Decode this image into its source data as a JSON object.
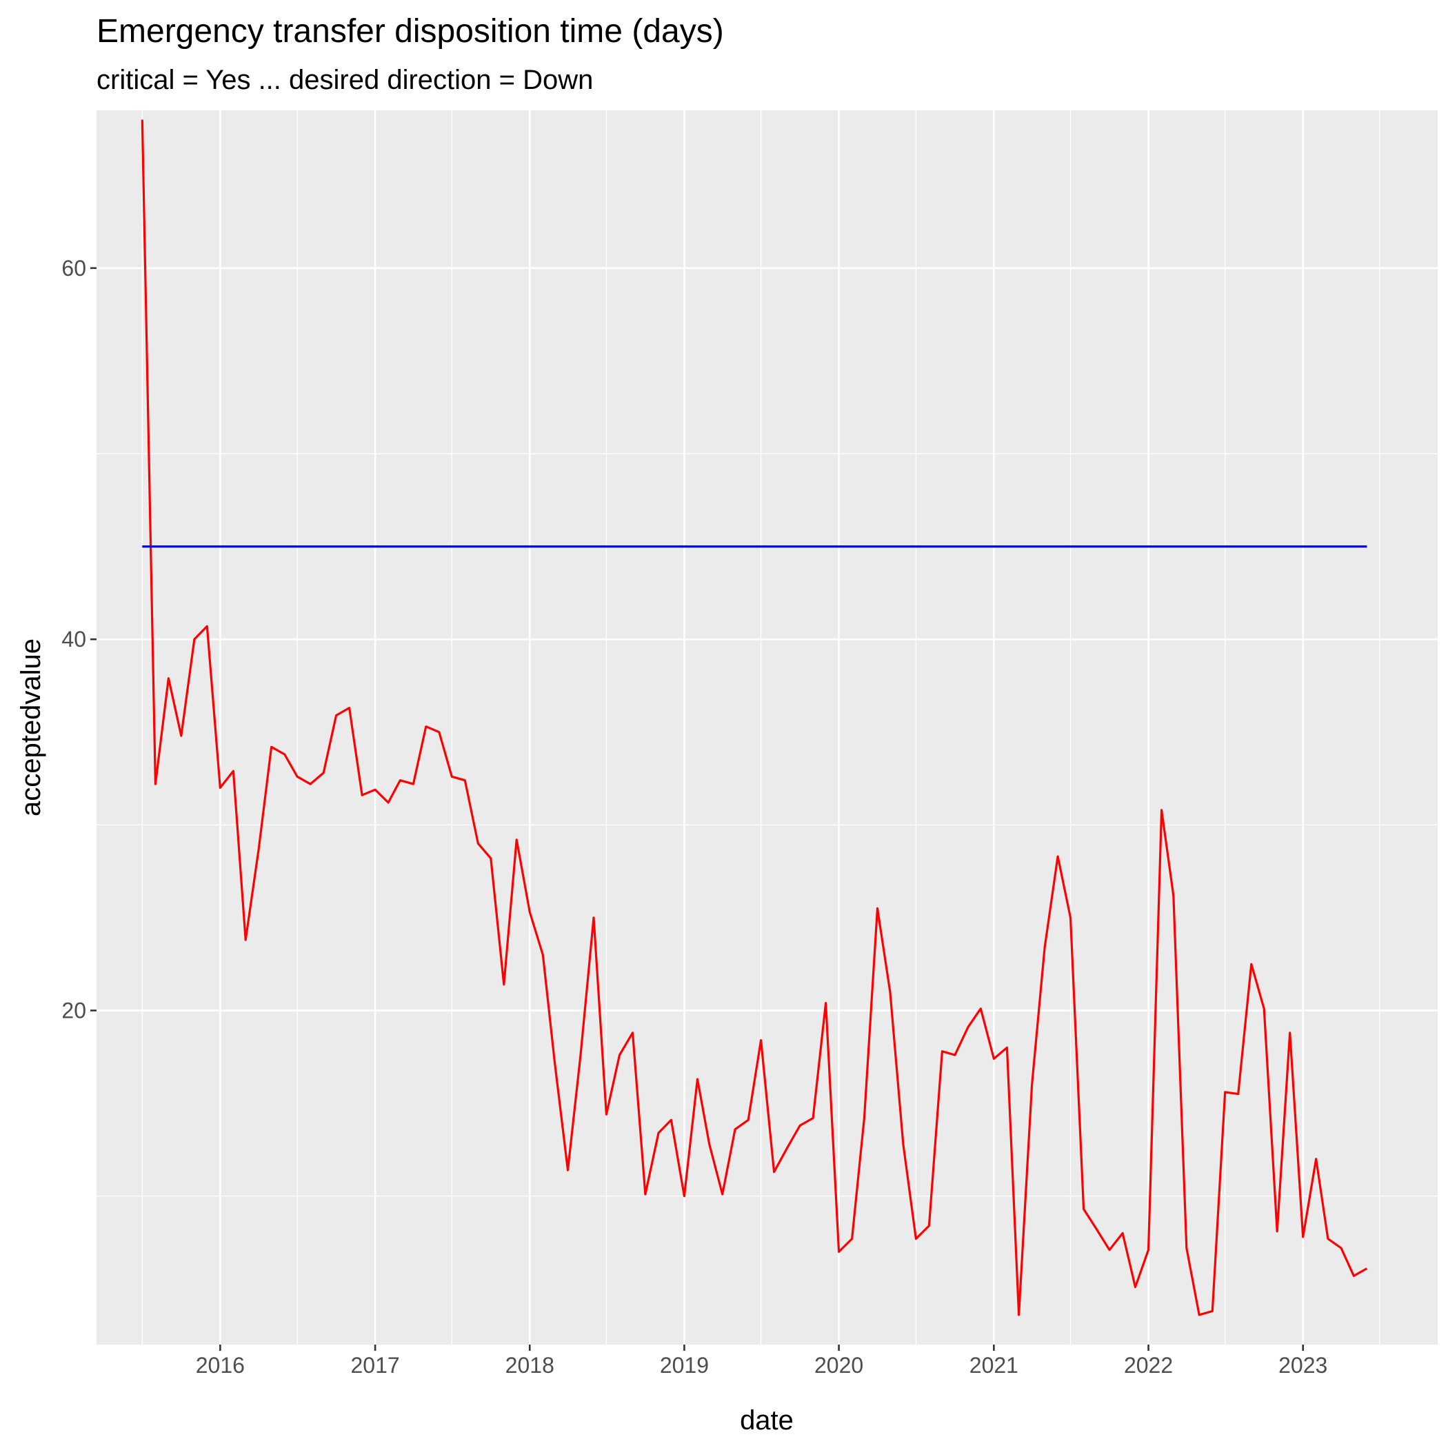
{
  "chart_data": {
    "type": "line",
    "title": "Emergency transfer disposition time (days)",
    "subtitle": "critical = Yes ... desired direction = Down",
    "xlabel": "date",
    "ylabel": "acceptedvalue",
    "xlim": [
      "2015-03-15",
      "2023-11-15"
    ],
    "ylim": [
      2,
      68.5
    ],
    "x_ticks": [
      "2016-01-01",
      "2017-01-01",
      "2018-01-01",
      "2019-01-01",
      "2020-01-01",
      "2021-01-01",
      "2022-01-01",
      "2023-01-01"
    ],
    "x_tick_labels": [
      "2016",
      "2017",
      "2018",
      "2019",
      "2020",
      "2021",
      "2022",
      "2023"
    ],
    "y_ticks": [
      20,
      40,
      60
    ],
    "y_tick_labels": [
      "20",
      "40",
      "60"
    ],
    "grid": true,
    "colors": {
      "panel": "#ebebeb",
      "grid": "#ffffff",
      "series_value": "#ff0000",
      "series_reference": "#0000ff"
    },
    "series": [
      {
        "color": "#ff0000",
        "x": [
          "2015-07-01",
          "2015-08-01",
          "2015-09-01",
          "2015-10-01",
          "2015-11-01",
          "2015-12-01",
          "2016-01-01",
          "2016-02-01",
          "2016-03-01",
          "2016-04-01",
          "2016-05-01",
          "2016-06-01",
          "2016-07-01",
          "2016-08-01",
          "2016-09-01",
          "2016-10-01",
          "2016-11-01",
          "2016-12-01",
          "2017-01-01",
          "2017-02-01",
          "2017-03-01",
          "2017-04-01",
          "2017-05-01",
          "2017-06-01",
          "2017-07-01",
          "2017-08-01",
          "2017-09-01",
          "2017-10-01",
          "2017-11-01",
          "2017-12-01",
          "2018-01-01",
          "2018-02-01",
          "2018-03-01",
          "2018-04-01",
          "2018-05-01",
          "2018-06-01",
          "2018-07-01",
          "2018-08-01",
          "2018-09-01",
          "2018-10-01",
          "2018-11-01",
          "2018-12-01",
          "2019-01-01",
          "2019-02-01",
          "2019-03-01",
          "2019-04-01",
          "2019-05-01",
          "2019-06-01",
          "2019-07-01",
          "2019-08-01",
          "2019-09-01",
          "2019-10-01",
          "2019-11-01",
          "2019-12-01",
          "2020-01-01",
          "2020-02-01",
          "2020-03-01",
          "2020-04-01",
          "2020-05-01",
          "2020-06-01",
          "2020-07-01",
          "2020-08-01",
          "2020-09-01",
          "2020-10-01",
          "2020-11-01",
          "2020-12-01",
          "2021-01-01",
          "2021-02-01",
          "2021-03-01",
          "2021-04-01",
          "2021-05-01",
          "2021-06-01",
          "2021-07-01",
          "2021-08-01",
          "2021-09-01",
          "2021-10-01",
          "2021-11-01",
          "2021-12-01",
          "2022-01-01",
          "2022-02-01",
          "2022-03-01",
          "2022-04-01",
          "2022-05-01",
          "2022-06-01",
          "2022-07-01",
          "2022-08-01",
          "2022-09-01",
          "2022-10-01",
          "2022-11-01",
          "2022-12-01",
          "2023-01-01",
          "2023-02-01",
          "2023-03-01",
          "2023-04-01",
          "2023-05-01",
          "2023-06-01"
        ],
        "values": [
          68.0,
          32.2,
          37.9,
          34.8,
          40.0,
          40.7,
          32.0,
          32.9,
          23.8,
          28.7,
          34.2,
          33.8,
          32.6,
          32.2,
          32.8,
          35.9,
          36.3,
          31.6,
          31.9,
          31.2,
          32.4,
          32.2,
          35.3,
          35.0,
          32.6,
          32.4,
          29.0,
          28.2,
          21.4,
          29.2,
          25.3,
          23.0,
          17.2,
          11.4,
          17.6,
          25.0,
          14.4,
          17.6,
          18.8,
          10.1,
          13.4,
          14.1,
          10.0,
          16.3,
          12.8,
          10.1,
          13.6,
          14.1,
          18.4,
          11.3,
          12.6,
          13.8,
          14.2,
          20.4,
          7.0,
          7.7,
          14.2,
          25.5,
          21.0,
          12.8,
          7.7,
          8.4,
          17.8,
          17.6,
          19.1,
          20.1,
          17.4,
          18.0,
          3.6,
          16.0,
          23.4,
          28.3,
          25.0,
          9.3,
          8.2,
          7.1,
          8.0,
          5.1,
          7.1,
          30.8,
          26.2,
          7.2,
          3.6,
          3.8,
          15.6,
          15.5,
          22.5,
          20.1,
          8.1,
          18.8,
          7.8,
          12.0,
          7.7,
          7.2,
          5.7,
          6.1
        ]
      },
      {
        "color": "#0000ff",
        "x": [
          "2015-07-01",
          "2023-06-01"
        ],
        "values": [
          45.0,
          45.0
        ]
      }
    ]
  }
}
